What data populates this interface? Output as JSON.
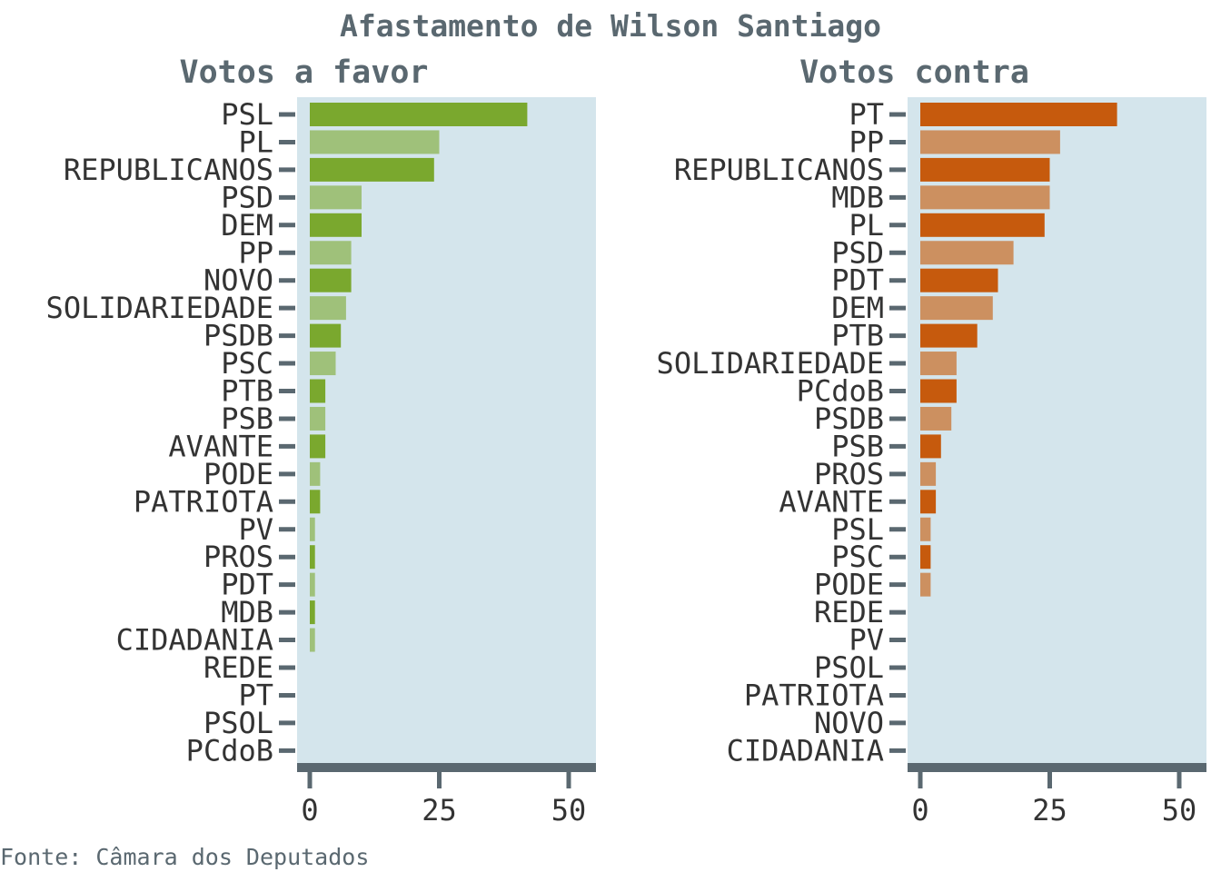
{
  "title": "Afastamento de Wilson Santiago",
  "source": "Fonte: Câmara dos Deputados",
  "colors": {
    "panel_bg": "#d4e5ec",
    "axis": "#5a6870",
    "favor_dark": "#7aa82e",
    "favor_light": "#9fc17a",
    "contra_dark": "#c65a0d",
    "contra_light": "#cc9060"
  },
  "chart_data": [
    {
      "type": "bar",
      "orientation": "horizontal",
      "title": "Votos a favor",
      "xlim": [
        0,
        55
      ],
      "xticks": [
        0,
        25,
        50
      ],
      "categories": [
        "PSL",
        "PL",
        "REPUBLICANOS",
        "PSD",
        "DEM",
        "PP",
        "NOVO",
        "SOLIDARIEDADE",
        "PSDB",
        "PSC",
        "PTB",
        "PSB",
        "AVANTE",
        "PODE",
        "PATRIOTA",
        "PV",
        "PROS",
        "PDT",
        "MDB",
        "CIDADANIA",
        "REDE",
        "PT",
        "PSOL",
        "PCdoB"
      ],
      "values": [
        42,
        25,
        24,
        10,
        10,
        8,
        8,
        7,
        6,
        5,
        3,
        3,
        3,
        2,
        2,
        1,
        1,
        1,
        1,
        1,
        0,
        0,
        0,
        0
      ]
    },
    {
      "type": "bar",
      "orientation": "horizontal",
      "title": "Votos contra",
      "xlim": [
        0,
        55
      ],
      "xticks": [
        0,
        25,
        50
      ],
      "categories": [
        "PT",
        "PP",
        "REPUBLICANOS",
        "MDB",
        "PL",
        "PSD",
        "PDT",
        "DEM",
        "PTB",
        "SOLIDARIEDADE",
        "PCdoB",
        "PSDB",
        "PSB",
        "PROS",
        "AVANTE",
        "PSL",
        "PSC",
        "PODE",
        "REDE",
        "PV",
        "PSOL",
        "PATRIOTA",
        "NOVO",
        "CIDADANIA"
      ],
      "values": [
        38,
        27,
        25,
        25,
        24,
        18,
        15,
        14,
        11,
        7,
        7,
        6,
        4,
        3,
        3,
        2,
        2,
        2,
        0,
        0,
        0,
        0,
        0,
        0
      ]
    }
  ]
}
